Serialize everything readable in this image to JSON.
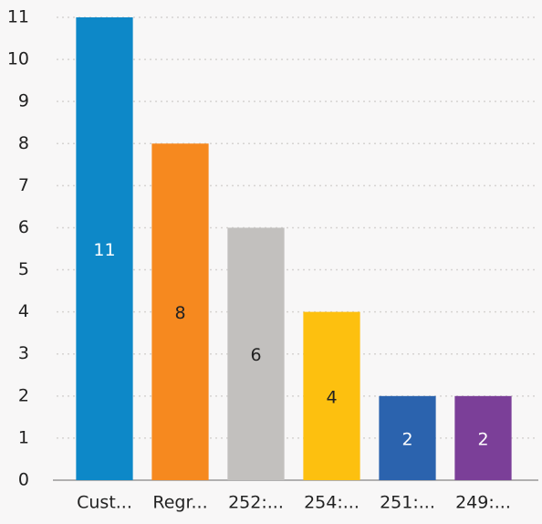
{
  "chart_data": {
    "type": "bar",
    "categories": [
      "Cust...",
      "Regr...",
      "252:...",
      "254:...",
      "251:...",
      "249:..."
    ],
    "values": [
      11,
      8,
      6,
      4,
      2,
      2
    ],
    "colors": [
      "#0d88c8",
      "#f6891f",
      "#c2c0be",
      "#fdc00f",
      "#2b63ae",
      "#7b3f98"
    ],
    "value_label_colors": [
      "#ffffff",
      "#222222",
      "#222222",
      "#222222",
      "#ffffff",
      "#ffffff"
    ],
    "ylim": [
      0,
      11
    ],
    "yticks": [
      0,
      1,
      2,
      3,
      4,
      5,
      6,
      7,
      8,
      9,
      10,
      11
    ],
    "grid": true
  }
}
